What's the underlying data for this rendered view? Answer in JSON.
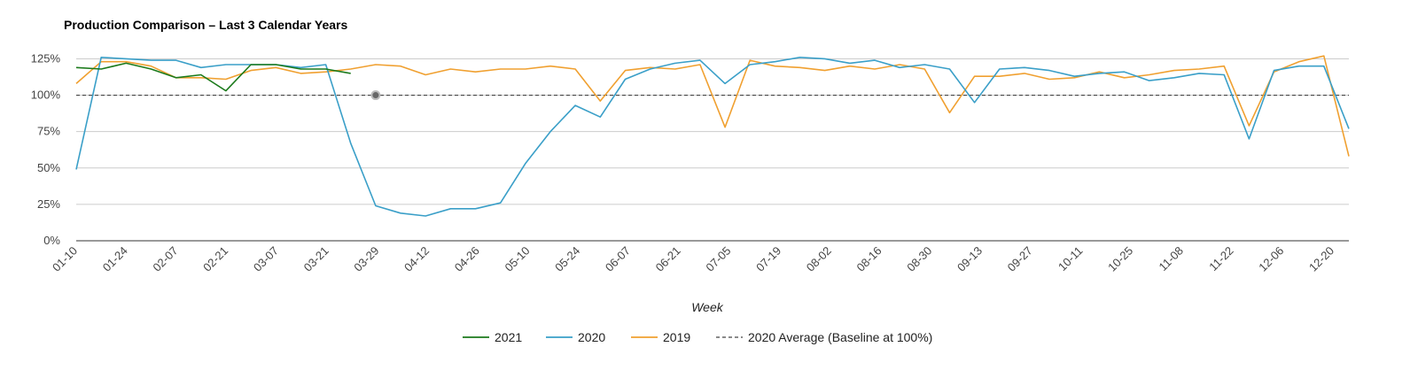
{
  "chart_data": {
    "type": "line",
    "title": "Production Comparison – Last 3 Calendar Years",
    "xlabel": "Week",
    "ylabel": "",
    "ylim": [
      0,
      135
    ],
    "y_ticks": [
      "0%",
      "25%",
      "50%",
      "75%",
      "100%",
      "125%"
    ],
    "y_tick_values": [
      0,
      25,
      50,
      75,
      100,
      125
    ],
    "x_tick_labels": [
      "01-10",
      "01-24",
      "02-07",
      "02-21",
      "03-07",
      "03-21",
      "03-29",
      "04-12",
      "04-26",
      "05-10",
      "05-24",
      "06-07",
      "06-21",
      "07-05",
      "07-19",
      "08-02",
      "08-16",
      "08-30",
      "09-13",
      "09-27",
      "10-11",
      "10-25",
      "11-08",
      "11-22",
      "12-06",
      "12-20"
    ],
    "grid": true,
    "legend_position": "bottom",
    "series": [
      {
        "name": "2021",
        "color": "#1b7a1b",
        "values": [
          119,
          118,
          122,
          118,
          112,
          114,
          103,
          121,
          121,
          118,
          118,
          115
        ]
      },
      {
        "name": "2020",
        "color": "#3a9fc8",
        "values": [
          49,
          126,
          125,
          124,
          124,
          119,
          121,
          121,
          121,
          119,
          121,
          67,
          24,
          19,
          17,
          22,
          22,
          26,
          53,
          75,
          93,
          85,
          111,
          118,
          122,
          124,
          108,
          121,
          123,
          126,
          125,
          122,
          124,
          119,
          121,
          118,
          95,
          118,
          119,
          117,
          113,
          115,
          116,
          110,
          112,
          115,
          114,
          70,
          117,
          120,
          120,
          77
        ]
      },
      {
        "name": "2019",
        "color": "#f0a030",
        "values": [
          108,
          123,
          123,
          120,
          112,
          112,
          111,
          117,
          119,
          115,
          116,
          118,
          121,
          120,
          114,
          118,
          116,
          118,
          118,
          120,
          118,
          96,
          117,
          119,
          118,
          121,
          78,
          124,
          120,
          119,
          117,
          120,
          118,
          121,
          118,
          88,
          113,
          113,
          115,
          111,
          112,
          116,
          112,
          114,
          117,
          118,
          120,
          79,
          116,
          123,
          127,
          58
        ]
      }
    ],
    "baseline": {
      "name": "2020 Average (Baseline at 100%)",
      "value": 100,
      "color": "#444444",
      "style": "dashed"
    }
  }
}
